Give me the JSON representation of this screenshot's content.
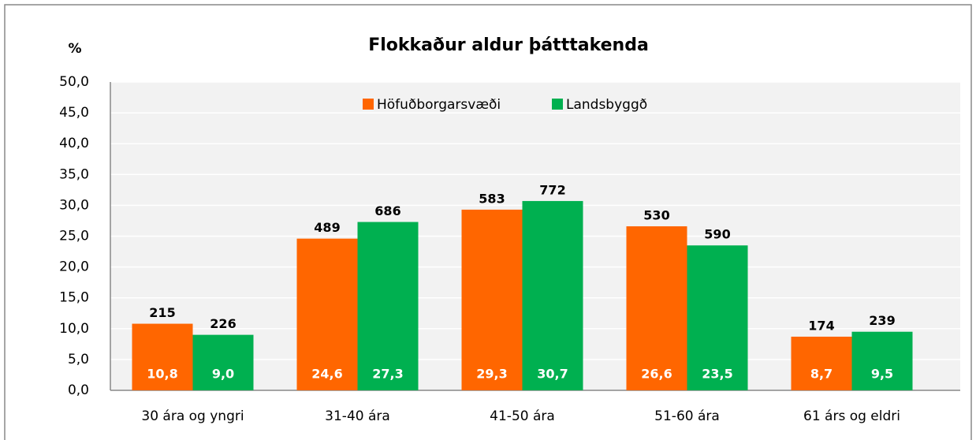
{
  "chart_data": {
    "type": "bar",
    "title": "Flokkaður aldur þátttakenda",
    "y_label": "%",
    "categories": [
      "30 ára og yngri",
      "31-40 ára",
      "41-50 ára",
      "51-60 ára",
      "61 árs og eldri"
    ],
    "series": [
      {
        "name": "Höfuðborgarsvæði",
        "color": "#ff6600",
        "values": [
          10.8,
          24.6,
          29.3,
          26.6,
          8.7
        ],
        "value_labels": [
          "10,8",
          "24,6",
          "29,3",
          "26,6",
          "8,7"
        ],
        "counts": [
          215,
          489,
          583,
          530,
          174
        ]
      },
      {
        "name": "Landsbyggð",
        "color": "#00b050",
        "values": [
          9.0,
          27.3,
          30.7,
          23.5,
          9.5
        ],
        "value_labels": [
          "9,0",
          "27,3",
          "30,7",
          "23,5",
          "9,5"
        ],
        "counts": [
          226,
          686,
          772,
          590,
          239
        ]
      }
    ],
    "ylim": [
      0,
      50
    ],
    "yticks": [
      {
        "value": 0,
        "label": "0,0"
      },
      {
        "value": 5,
        "label": "5,0"
      },
      {
        "value": 10,
        "label": "10,0"
      },
      {
        "value": 15,
        "label": "15,0"
      },
      {
        "value": 20,
        "label": "20,0"
      },
      {
        "value": 25,
        "label": "25,0"
      },
      {
        "value": 30,
        "label": "30,0"
      },
      {
        "value": 35,
        "label": "35,0"
      },
      {
        "value": 40,
        "label": "40,0"
      },
      {
        "value": 45,
        "label": "45,0"
      },
      {
        "value": 50,
        "label": "50,0"
      }
    ],
    "grid": true,
    "legend": "top"
  }
}
